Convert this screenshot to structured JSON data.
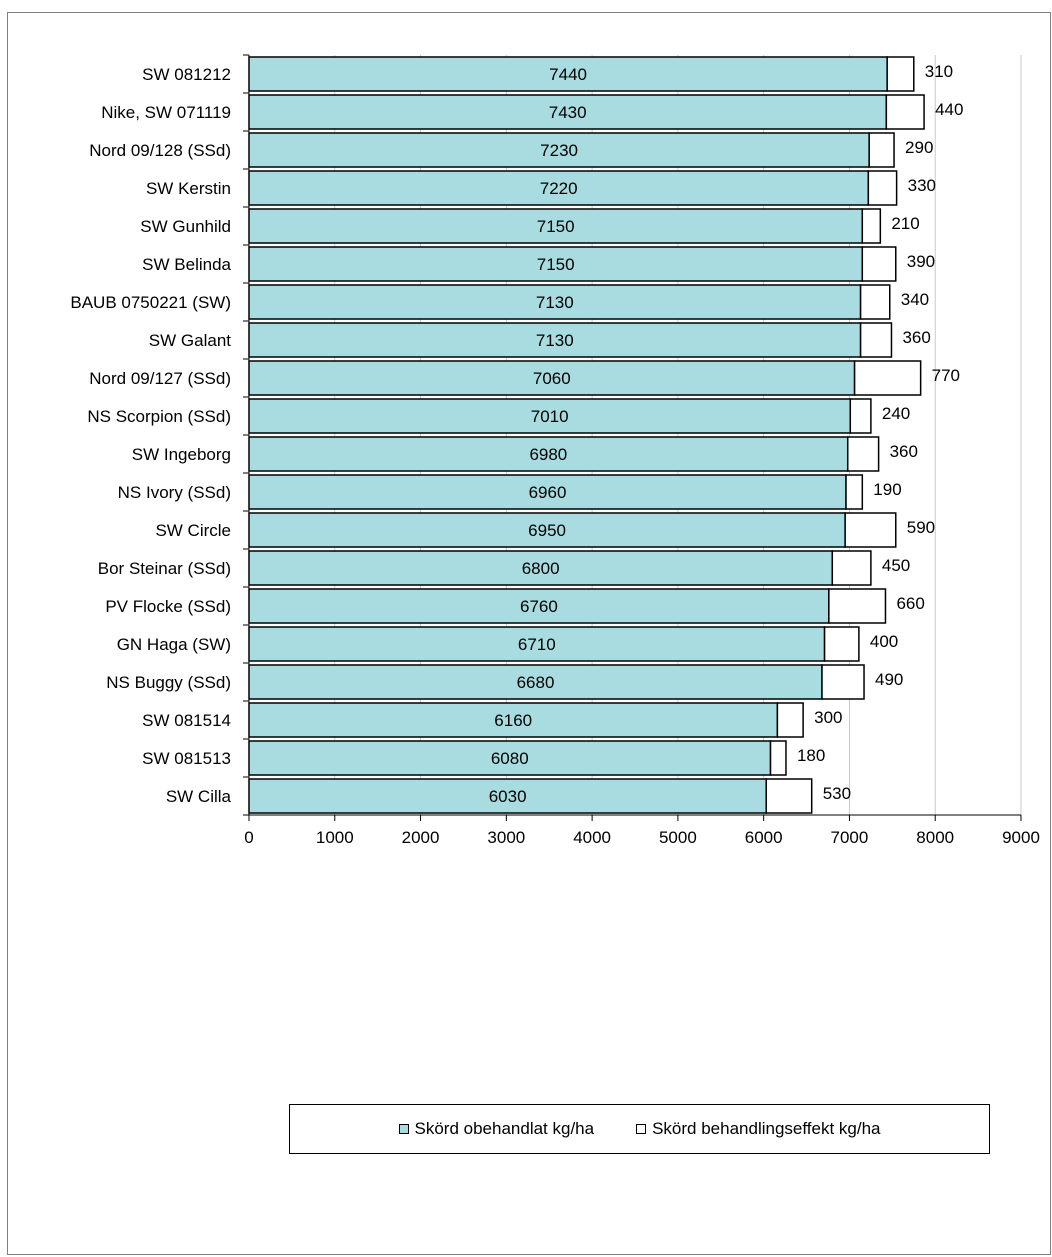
{
  "chart_data": {
    "type": "bar",
    "orientation": "horizontal",
    "stacked": true,
    "categories": [
      "SW 081212",
      "Nike, SW 071119",
      "Nord 09/128 (SSd)",
      "SW Kerstin",
      "SW Gunhild",
      "SW Belinda",
      "BAUB 0750221 (SW)",
      "SW Galant",
      "Nord 09/127 (SSd)",
      "NS Scorpion (SSd)",
      "SW Ingeborg",
      "NS Ivory (SSd)",
      "SW Circle",
      "Bor Steinar (SSd)",
      "PV Flocke (SSd)",
      "GN Haga (SW)",
      "NS Buggy (SSd)",
      "SW 081514",
      "SW 081513",
      "SW Cilla"
    ],
    "series": [
      {
        "name": "Skörd obehandlat kg/ha",
        "color": "#a8dce0",
        "values": [
          7440,
          7430,
          7230,
          7220,
          7150,
          7150,
          7130,
          7130,
          7060,
          7010,
          6980,
          6960,
          6950,
          6800,
          6760,
          6710,
          6680,
          6160,
          6080,
          6030
        ]
      },
      {
        "name": "Skörd behandlingseffekt kg/ha",
        "color": "#ffffff",
        "values": [
          310,
          440,
          290,
          330,
          210,
          390,
          340,
          360,
          770,
          240,
          360,
          190,
          590,
          450,
          660,
          400,
          490,
          300,
          180,
          530
        ]
      }
    ],
    "xlim": [
      0,
      9000
    ],
    "xticks": [
      "0",
      "1000",
      "2000",
      "3000",
      "4000",
      "5000",
      "6000",
      "7000",
      "8000",
      "9000"
    ],
    "grid": true,
    "legend_position": "bottom"
  }
}
